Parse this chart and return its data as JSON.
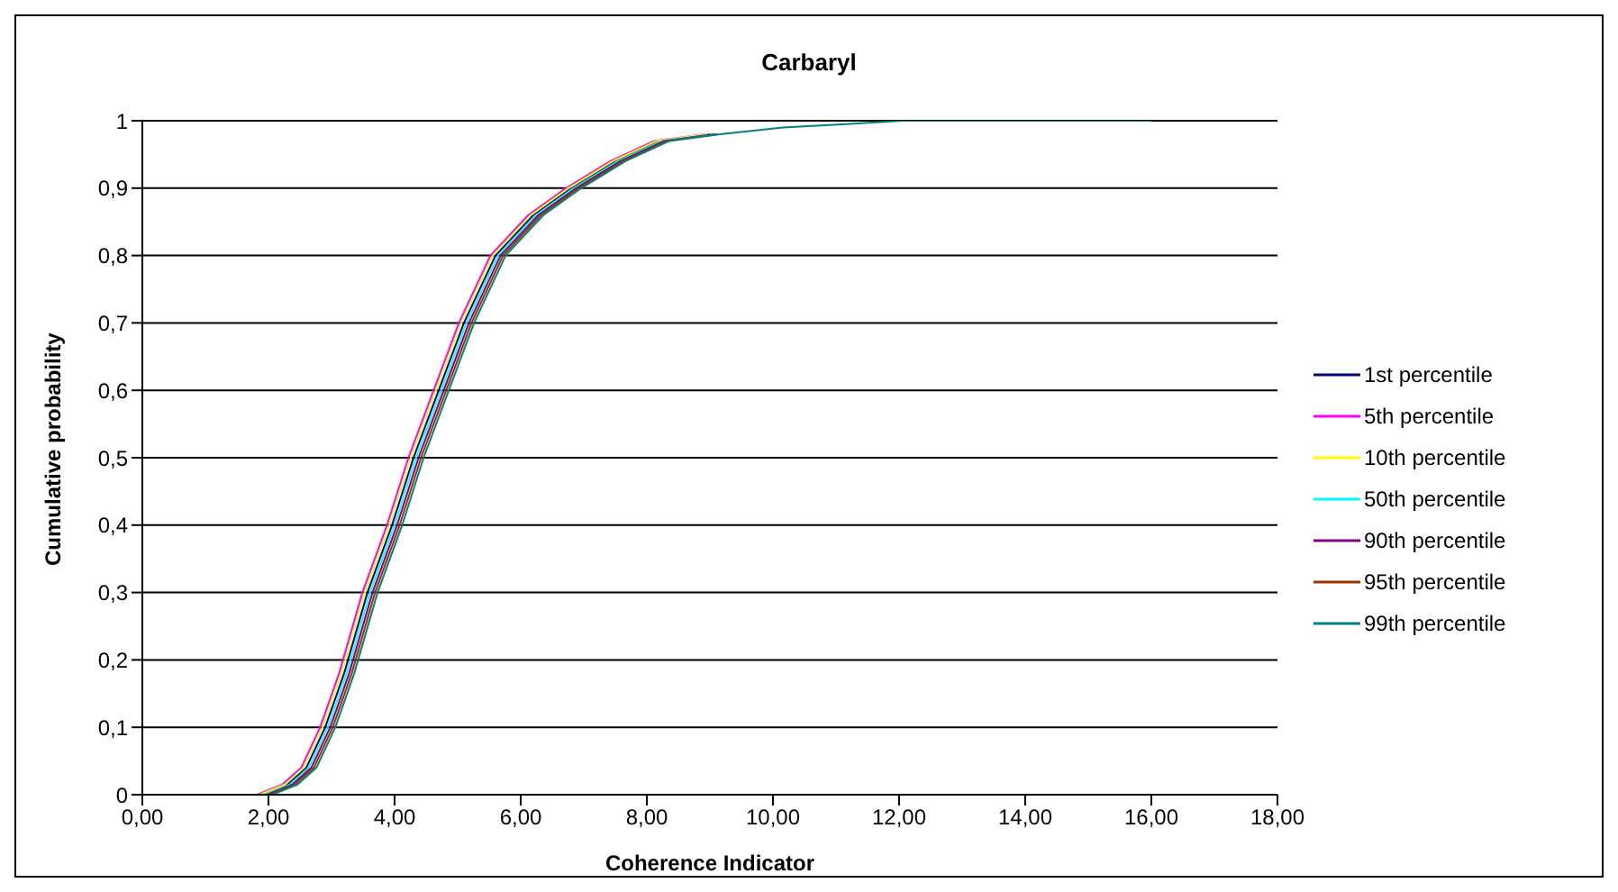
{
  "chart_data": {
    "type": "line",
    "title": "Carbaryl",
    "xlabel": "Coherence Indicator",
    "ylabel": "Cumulative probability",
    "series": [
      {
        "name": "1st percentile",
        "color": "#000080",
        "x": [
          1.9,
          2.3,
          2.6,
          2.9,
          3.2,
          3.57,
          3.96,
          4.3,
          4.7,
          5.1,
          5.6,
          6.2,
          6.8,
          7.5,
          8.2,
          9
        ],
        "values": [
          0,
          0.015,
          0.04,
          0.1,
          0.18,
          0.3,
          0.4,
          0.5,
          0.6,
          0.7,
          0.8,
          0.86,
          0.9,
          0.94,
          0.97,
          0.98
        ]
      },
      {
        "name": "5th percentile",
        "color": "#ff00ff",
        "x": [
          1.82,
          2.22,
          2.52,
          2.82,
          3.12,
          3.49,
          3.88,
          4.22,
          4.62,
          5.02,
          5.52,
          6.12,
          6.72,
          7.42,
          8.12,
          8.92
        ],
        "values": [
          0,
          0.015,
          0.04,
          0.1,
          0.18,
          0.3,
          0.4,
          0.5,
          0.6,
          0.7,
          0.8,
          0.86,
          0.9,
          0.94,
          0.97,
          0.98
        ]
      },
      {
        "name": "10th percentile",
        "color": "#ffff00",
        "x": [
          1.86,
          2.26,
          2.56,
          2.86,
          3.16,
          3.53,
          3.92,
          4.26,
          4.66,
          5.06,
          5.56,
          6.16,
          6.76,
          7.46,
          8.16,
          8.96
        ],
        "values": [
          0,
          0.015,
          0.04,
          0.1,
          0.18,
          0.3,
          0.4,
          0.5,
          0.6,
          0.7,
          0.8,
          0.86,
          0.9,
          0.94,
          0.97,
          0.98
        ]
      },
      {
        "name": "50th percentile",
        "color": "#00ffff",
        "x": [
          1.94,
          2.34,
          2.64,
          2.94,
          3.24,
          3.61,
          4,
          4.34,
          4.74,
          5.14,
          5.64,
          6.24,
          6.84,
          7.54,
          8.24,
          9.04
        ],
        "values": [
          0,
          0.015,
          0.04,
          0.1,
          0.18,
          0.3,
          0.4,
          0.5,
          0.6,
          0.7,
          0.8,
          0.86,
          0.9,
          0.94,
          0.97,
          0.98
        ]
      },
      {
        "name": "90th percentile",
        "color": "#800080",
        "x": [
          1.98,
          2.38,
          2.68,
          2.98,
          3.28,
          3.65,
          4.04,
          4.38,
          4.78,
          5.18,
          5.68,
          6.28,
          6.88,
          7.58,
          8.28,
          9.08
        ],
        "values": [
          0,
          0.015,
          0.04,
          0.1,
          0.18,
          0.3,
          0.4,
          0.5,
          0.6,
          0.7,
          0.8,
          0.86,
          0.9,
          0.94,
          0.97,
          0.98
        ]
      },
      {
        "name": "95th percentile",
        "color": "#993300",
        "x": [
          2.02,
          2.42,
          2.72,
          3.02,
          3.32,
          3.69,
          4.08,
          4.42,
          4.82,
          5.22,
          5.72,
          6.32,
          6.92,
          7.62,
          8.32,
          9.12
        ],
        "values": [
          0,
          0.015,
          0.04,
          0.1,
          0.18,
          0.3,
          0.4,
          0.5,
          0.6,
          0.7,
          0.8,
          0.86,
          0.9,
          0.94,
          0.97,
          0.98
        ]
      },
      {
        "name": "99th percentile",
        "color": "#008080",
        "x": [
          2.06,
          2.46,
          2.76,
          3.06,
          3.36,
          3.73,
          4.12,
          4.46,
          4.86,
          5.26,
          5.76,
          6.36,
          6.96,
          7.66,
          8.36,
          9.16,
          10.16,
          11.16,
          12.06,
          16
        ],
        "values": [
          0,
          0.015,
          0.04,
          0.1,
          0.18,
          0.3,
          0.4,
          0.5,
          0.6,
          0.7,
          0.8,
          0.86,
          0.9,
          0.94,
          0.97,
          0.98,
          0.99,
          0.995,
          1,
          1
        ]
      }
    ],
    "xlim": [
      0,
      18
    ],
    "xticks": [
      {
        "value": 0,
        "label": "0,00"
      },
      {
        "value": 2,
        "label": "2,00"
      },
      {
        "value": 4,
        "label": "4,00"
      },
      {
        "value": 6,
        "label": "6,00"
      },
      {
        "value": 8,
        "label": "8,00"
      },
      {
        "value": 10,
        "label": "10,00"
      },
      {
        "value": 12,
        "label": "12,00"
      },
      {
        "value": 14,
        "label": "14,00"
      },
      {
        "value": 16,
        "label": "16,00"
      },
      {
        "value": 18,
        "label": "18,00"
      }
    ],
    "ylim": [
      0,
      1
    ],
    "yticks": [
      0,
      {
        "value": 0.1,
        "label": "0,1"
      },
      {
        "value": 0.2,
        "label": "0,2"
      },
      {
        "value": 0.3,
        "label": "0,3"
      },
      {
        "value": 0.4,
        "label": "0,4"
      },
      {
        "value": 0.5,
        "label": "0,5"
      },
      {
        "value": 0.6,
        "label": "0,6"
      },
      {
        "value": 0.7,
        "label": "0,7"
      },
      {
        "value": 0.8,
        "label": "0,8"
      },
      {
        "value": 0.9,
        "label": "0,9"
      },
      1
    ],
    "grid": "y",
    "legend": "right",
    "marker": "none",
    "line_style": "solid"
  }
}
